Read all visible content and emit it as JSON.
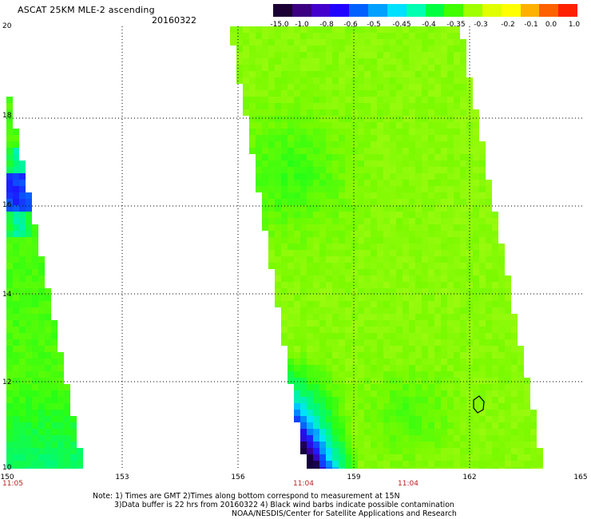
{
  "header": {
    "title": "ASCAT 25KM MLE-2 ascending",
    "date": "20160322"
  },
  "colorbar": {
    "labels": [
      "-15.0",
      "-1.0",
      "-0.8",
      "-0.6",
      "-0.5",
      "-0.45",
      "-0.4",
      "-0.35",
      "-0.3",
      "-0.2",
      "-0.1",
      "0.0",
      "1.0"
    ],
    "colors": [
      "#1a0033",
      "#3a0080",
      "#4400cc",
      "#2000ff",
      "#0060ff",
      "#00a0ff",
      "#00e0ff",
      "#00ffb0",
      "#00ff40",
      "#40ff00",
      "#a0ff00",
      "#e0ff00",
      "#ffff00",
      "#ffb000",
      "#ff6000",
      "#ff2000"
    ]
  },
  "map": {
    "lat_ticks": [
      "20",
      "18",
      "16",
      "14",
      "12",
      "10"
    ],
    "lon_ticks": [
      "150",
      "153",
      "156",
      "159",
      "162",
      "165"
    ],
    "time_labels": [
      "11:05",
      "11:04",
      "11:04"
    ],
    "lat_range": [
      10,
      20
    ],
    "lon_range": [
      150,
      165
    ]
  },
  "notes": [
    "Note: 1) Times are GMT 2)Times along bottom correspond to measurement at 15N",
    "3)Data buffer is 22 hrs from 20160322 4) Black wind barbs indicate possible contamination",
    "NOAA/NESDIS/Center for Satellite Applications and Research"
  ]
}
